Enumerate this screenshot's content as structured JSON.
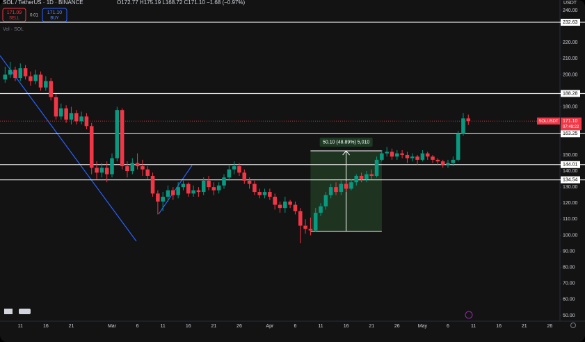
{
  "header": {
    "symbol": "SOL / TetherUS · 1D · BINANCE",
    "ohlc": "O172.77 H175.19 L168.72 C171.10 −1.68 (−0.97%)",
    "sell_price": "171.09",
    "sell": "SELL",
    "spread": "0.01",
    "buy_price": "171.10",
    "buy": "BUY",
    "volume": "Vol · SOL",
    "currency": "USDT"
  },
  "chart_data": {
    "type": "candlestick",
    "x": [
      "Feb 8",
      "Feb 9",
      "Feb 10",
      "Feb 11",
      "Feb 12",
      "Feb 13",
      "Feb 14",
      "Feb 15",
      "Feb 16",
      "Feb 17",
      "Feb 18",
      "Feb 19",
      "Feb 20",
      "Feb 21",
      "Feb 22",
      "Feb 23",
      "Feb 24",
      "Feb 25",
      "Feb 26",
      "Feb 27",
      "Feb 28",
      "Mar 1",
      "Mar 2",
      "Mar 3",
      "Mar 4",
      "Mar 5",
      "Mar 6",
      "Mar 7",
      "Mar 8",
      "Mar 9",
      "Mar 10",
      "Mar 11",
      "Mar 12",
      "Mar 13",
      "Mar 14",
      "Mar 15",
      "Mar 16",
      "Mar 17",
      "Mar 18",
      "Mar 19",
      "Mar 20",
      "Mar 21",
      "Mar 22",
      "Mar 23",
      "Mar 24",
      "Mar 25",
      "Mar 26",
      "Mar 27",
      "Mar 28",
      "Mar 29",
      "Mar 30",
      "Mar 31",
      "Apr 1",
      "Apr 2",
      "Apr 3",
      "Apr 4",
      "Apr 5",
      "Apr 6",
      "Apr 7",
      "Apr 8",
      "Apr 9",
      "Apr 10",
      "Apr 11",
      "Apr 12",
      "Apr 13",
      "Apr 14",
      "Apr 15",
      "Apr 16",
      "Apr 17",
      "Apr 18",
      "Apr 19",
      "Apr 20",
      "Apr 21",
      "Apr 22",
      "Apr 23",
      "Apr 24",
      "Apr 25",
      "Apr 26",
      "Apr 27",
      "Apr 28",
      "Apr 29",
      "Apr 30",
      "May 1",
      "May 2",
      "May 3",
      "May 4",
      "May 5",
      "May 6",
      "May 7",
      "May 8",
      "May 9",
      "May 10"
    ],
    "open": [
      197,
      200,
      203,
      198,
      204,
      199,
      196,
      200,
      192,
      196,
      186,
      174,
      179,
      172,
      176,
      171,
      174,
      168,
      142,
      139,
      142,
      138,
      148,
      178,
      143,
      140,
      145,
      143,
      141,
      137,
      126,
      121,
      124,
      128,
      125,
      130,
      132,
      126,
      128,
      127,
      134,
      130,
      128,
      131,
      136,
      141,
      143,
      139,
      134,
      132,
      127,
      125,
      127,
      124,
      119,
      117,
      121,
      119,
      115,
      106,
      104,
      103,
      114,
      118,
      125,
      130,
      127,
      132,
      129,
      133,
      137,
      135,
      138,
      137,
      147,
      151,
      152,
      149,
      151,
      150,
      148,
      149,
      147,
      151,
      149,
      147,
      146,
      144,
      145,
      147,
      163,
      172.77
    ],
    "high": [
      205,
      208,
      205,
      207,
      206,
      202,
      203,
      202,
      199,
      198,
      188,
      182,
      181,
      180,
      178,
      177,
      176,
      170,
      146,
      145,
      146,
      151,
      180,
      179,
      146,
      148,
      151,
      147,
      143,
      139,
      128,
      127,
      131,
      130,
      133,
      134,
      133,
      131,
      130,
      136,
      137,
      133,
      133,
      138,
      144,
      146,
      145,
      141,
      136,
      134,
      129,
      129,
      129,
      126,
      121,
      124,
      122,
      121,
      117,
      110,
      111,
      117,
      120,
      127,
      132,
      133,
      134,
      134,
      135,
      138,
      139,
      140,
      141,
      149,
      153,
      155,
      154,
      153,
      153,
      152,
      151,
      150,
      153,
      152,
      150,
      148,
      147,
      147,
      149,
      165,
      176,
      175.19
    ],
    "low": [
      195,
      198,
      196,
      196,
      197,
      193,
      194,
      190,
      190,
      184,
      172,
      172,
      170,
      169,
      169,
      169,
      166,
      138,
      135,
      136,
      133,
      136,
      146,
      141,
      136,
      138,
      141,
      137,
      135,
      124,
      113,
      115,
      121,
      122,
      123,
      128,
      124,
      124,
      124,
      125,
      128,
      125,
      126,
      129,
      134,
      138,
      137,
      132,
      129,
      125,
      123,
      123,
      122,
      116,
      114,
      114,
      117,
      113,
      95,
      101,
      100,
      102,
      112,
      116,
      123,
      125,
      125,
      127,
      128,
      131,
      133,
      133,
      135,
      136,
      146,
      149,
      147,
      147,
      148,
      145,
      146,
      144,
      146,
      147,
      145,
      144,
      142,
      142,
      143,
      146,
      162,
      168.72
    ],
    "close": [
      200,
      203,
      198,
      204,
      199,
      196,
      200,
      192,
      196,
      186,
      174,
      179,
      172,
      176,
      171,
      174,
      168,
      142,
      139,
      142,
      138,
      148,
      178,
      143,
      140,
      145,
      143,
      141,
      137,
      126,
      121,
      124,
      128,
      125,
      130,
      132,
      126,
      128,
      127,
      134,
      130,
      128,
      131,
      136,
      141,
      143,
      139,
      134,
      132,
      127,
      125,
      127,
      124,
      119,
      117,
      121,
      119,
      115,
      106,
      104,
      103,
      114,
      118,
      125,
      130,
      127,
      132,
      129,
      133,
      137,
      135,
      138,
      137,
      147,
      151,
      152,
      149,
      151,
      150,
      148,
      149,
      147,
      151,
      149,
      147,
      146,
      144,
      145,
      147,
      163,
      172.77,
      171.1
    ],
    "up_color": "#089981",
    "down_color": "#f23645",
    "xlim": [
      "Feb 7",
      "May 28"
    ],
    "xticks": [
      {
        "value": "Feb 11",
        "label": "11"
      },
      {
        "value": "Feb 16",
        "label": "16"
      },
      {
        "value": "Feb 21",
        "label": "21"
      },
      {
        "value": "Mar 1",
        "label": "Mar"
      },
      {
        "value": "Mar 6",
        "label": "6"
      },
      {
        "value": "Mar 11",
        "label": "11"
      },
      {
        "value": "Mar 16",
        "label": "16"
      },
      {
        "value": "Mar 21",
        "label": "21"
      },
      {
        "value": "Mar 26",
        "label": "26"
      },
      {
        "value": "Apr 1",
        "label": "Apr"
      },
      {
        "value": "Apr 6",
        "label": "6"
      },
      {
        "value": "Apr 11",
        "label": "11"
      },
      {
        "value": "Apr 16",
        "label": "16"
      },
      {
        "value": "Apr 21",
        "label": "21"
      },
      {
        "value": "Apr 26",
        "label": "26"
      },
      {
        "value": "May 1",
        "label": "May"
      },
      {
        "value": "May 6",
        "label": "6"
      },
      {
        "value": "May 11",
        "label": "11"
      },
      {
        "value": "May 16",
        "label": "16"
      },
      {
        "value": "May 21",
        "label": "21"
      },
      {
        "value": "May 26",
        "label": "26"
      }
    ],
    "ylim": [
      45.24,
      246.49
    ],
    "yticks": [
      {
        "value": 240,
        "label": "240.00"
      },
      {
        "value": 220,
        "label": "220.00"
      },
      {
        "value": 210,
        "label": "210.00"
      },
      {
        "value": 200,
        "label": "200.00"
      },
      {
        "value": 180,
        "label": "180.00"
      },
      {
        "value": 150,
        "label": "150.00"
      },
      {
        "value": 140,
        "label": "140.00"
      },
      {
        "value": 130,
        "label": "130.00"
      },
      {
        "value": 120,
        "label": "120.00"
      },
      {
        "value": 110,
        "label": "110.00"
      },
      {
        "value": 100,
        "label": "100.00"
      },
      {
        "value": 90,
        "label": "90.00"
      },
      {
        "value": 80,
        "label": "80.00"
      },
      {
        "value": 70,
        "label": "70.00"
      },
      {
        "value": 60,
        "label": "60.00"
      },
      {
        "value": 50,
        "label": "50.00"
      }
    ],
    "grid": false,
    "levels": [
      232.63,
      188.28,
      163.25,
      144.01,
      134.54
    ],
    "price_line": {
      "symbol": "SOLUSDT",
      "price": {
        "value": 171.1,
        "label": "171.10"
      },
      "countdown": "07:49:22",
      "color": "#f23645"
    },
    "measure": {
      "label": "50.10 (48.89%) 5,010",
      "from": {
        "x": "Apr 9",
        "price": 102.47
      },
      "to": {
        "x": "Apr 23",
        "price": 152.57
      }
    }
  }
}
